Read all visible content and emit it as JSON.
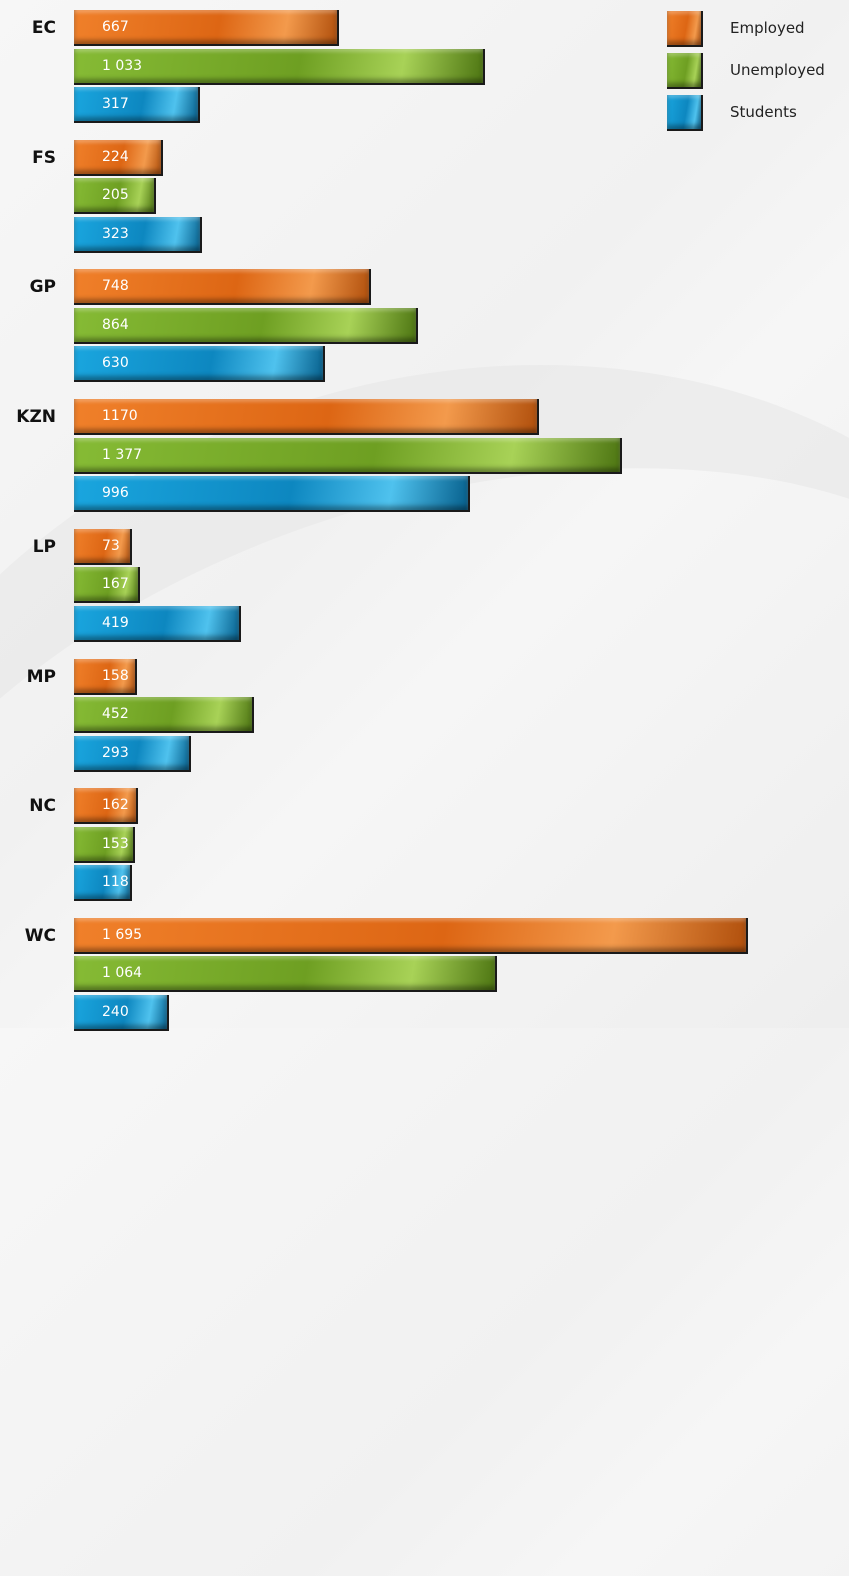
{
  "chart_data": {
    "type": "bar",
    "orientation": "horizontal",
    "categories": [
      "EC",
      "FS",
      "GP",
      "KZN",
      "LP",
      "MP",
      "NC",
      "WC"
    ],
    "series": [
      {
        "name": "Employed",
        "color": "#e2711d",
        "values": [
          667,
          224,
          748,
          1170,
          73,
          158,
          162,
          1695
        ],
        "labels": [
          "667",
          "224",
          "748",
          "1170",
          "73",
          "158",
          "162",
          "1 695"
        ]
      },
      {
        "name": "Unemployed",
        "color": "#78ab2a",
        "values": [
          1033,
          205,
          864,
          1377,
          167,
          452,
          153,
          1064
        ],
        "labels": [
          "1 033",
          "205",
          "864",
          "1 377",
          "167",
          "452",
          "153",
          "1 064"
        ]
      },
      {
        "name": "Students",
        "color": "#1396d1",
        "values": [
          317,
          323,
          630,
          996,
          419,
          293,
          118,
          240
        ],
        "labels": [
          "317",
          "323",
          "630",
          "996",
          "419",
          "293",
          "118",
          "240"
        ]
      }
    ],
    "legend_position": "top-right",
    "grid": false,
    "xaxis_visible": false
  }
}
